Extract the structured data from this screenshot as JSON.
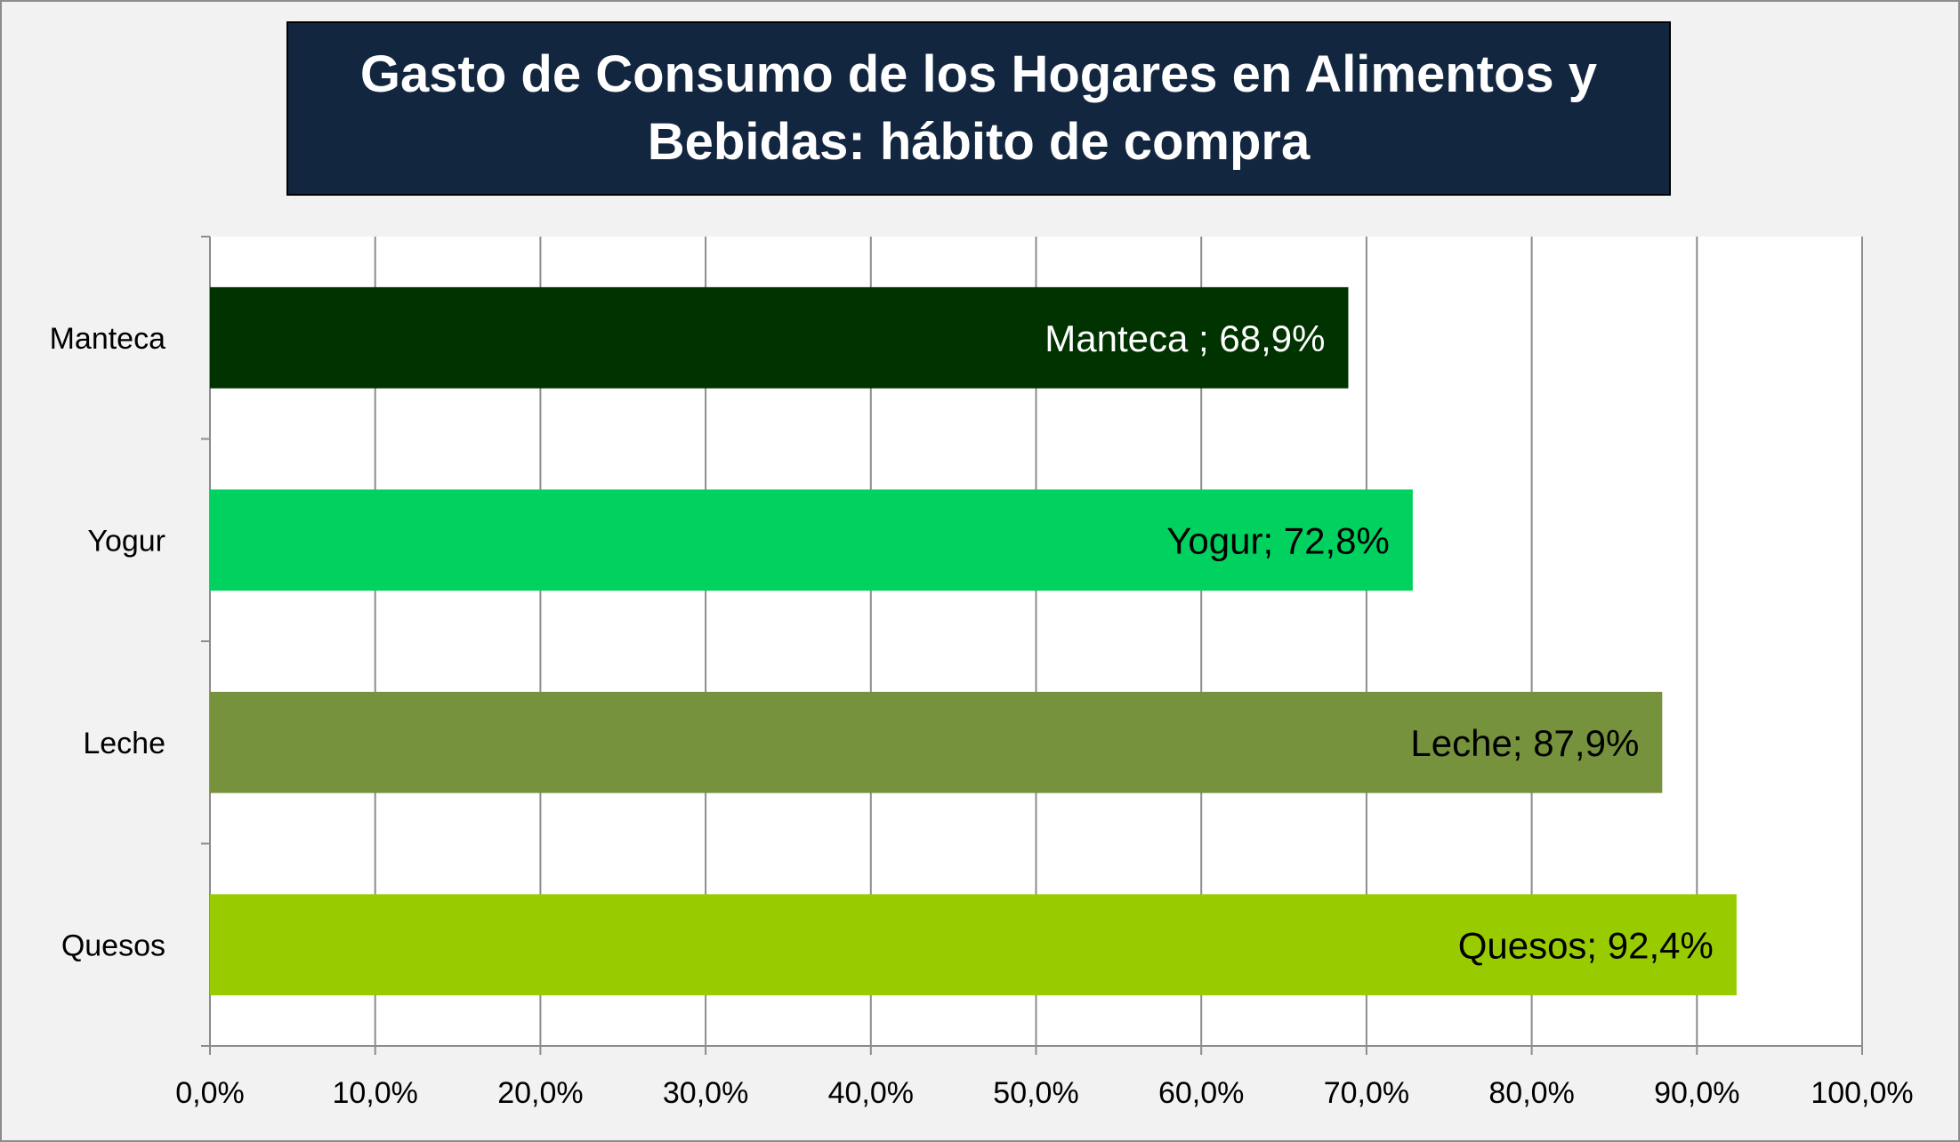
{
  "chart_data": {
    "type": "bar",
    "orientation": "horizontal",
    "title": "Gasto de Consumo de los Hogares en Alimentos y Bebidas: hábito de compra",
    "categories": [
      "Manteca",
      "Yogur",
      "Leche",
      "Quesos"
    ],
    "values": [
      68.9,
      72.8,
      87.9,
      92.4
    ],
    "data_labels": [
      "Manteca ; 68,9%",
      "Yogur; 72,8%",
      "Leche; 87,9%",
      "Quesos; 92,4%"
    ],
    "bar_colors": [
      "#003300",
      "#00d15f",
      "#76923c",
      "#99cc00"
    ],
    "label_colors": [
      "#ffffff",
      "#000000",
      "#000000",
      "#000000"
    ],
    "xlim": [
      0,
      100
    ],
    "x_ticks": [
      "0,0%",
      "10,0%",
      "20,0%",
      "30,0%",
      "40,0%",
      "50,0%",
      "60,0%",
      "70,0%",
      "80,0%",
      "90,0%",
      "100,0%"
    ],
    "grid": true,
    "legend": "none"
  },
  "colors": {
    "title_background": "#132640",
    "title_text": "#ffffff",
    "chart_background": "#f2f2f2",
    "plot_background": "#ffffff",
    "gridline": "#8c8c8c"
  }
}
